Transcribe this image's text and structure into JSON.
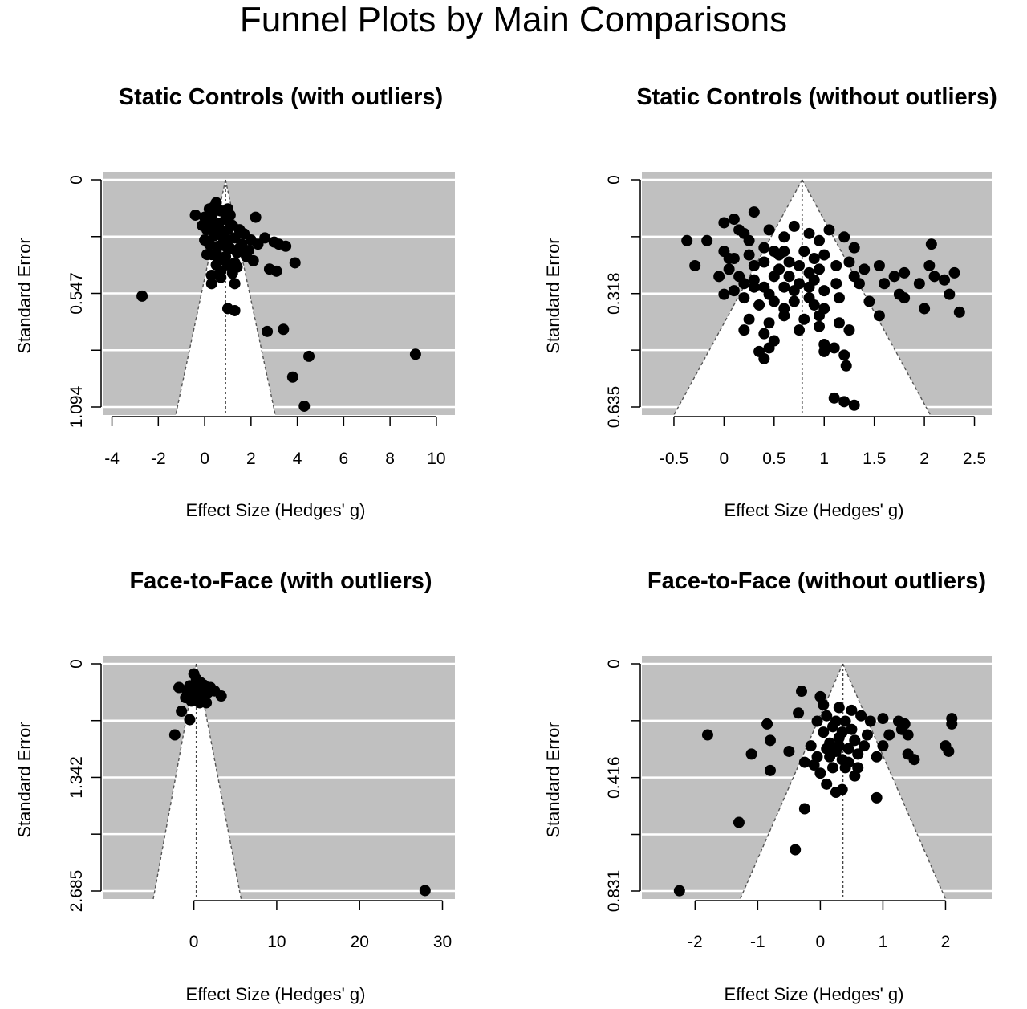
{
  "title": "Funnel Plots by Main Comparisons",
  "chart_data": [
    {
      "type": "scatter",
      "title": "Static Controls (with outliers)",
      "xlabel": "Effect Size (Hedges' g)",
      "ylabel": "Standard Error",
      "xlim": [
        -4.4,
        10.8
      ],
      "ylim": [
        1.094,
        0
      ],
      "x_ticks": [
        -4,
        -2,
        0,
        2,
        4,
        6,
        8,
        10
      ],
      "x_tick_labels": [
        "-4",
        "-2",
        "0",
        "2",
        "4",
        "6",
        "8",
        "10"
      ],
      "y_ticks": [
        0,
        0.547,
        1.094
      ],
      "y_tick_labels": [
        "0",
        "0.547",
        "1.094"
      ],
      "y_grid": [
        0,
        0.2735,
        0.547,
        0.8205,
        1.094
      ],
      "center": 0.9,
      "funnel_base_x": [
        -1.25,
        3.05
      ],
      "points": [
        [
          0.2,
          0.14
        ],
        [
          0.5,
          0.11
        ],
        [
          0.3,
          0.17
        ],
        [
          0.7,
          0.15
        ],
        [
          1.0,
          0.14
        ],
        [
          0.6,
          0.21
        ],
        [
          0.1,
          0.24
        ],
        [
          -0.1,
          0.22
        ],
        [
          0.9,
          0.19
        ],
        [
          1.2,
          0.22
        ],
        [
          1.5,
          0.24
        ],
        [
          0.4,
          0.27
        ],
        [
          0.8,
          0.28
        ],
        [
          1.3,
          0.28
        ],
        [
          0.2,
          0.31
        ],
        [
          0.6,
          0.32
        ],
        [
          1.1,
          0.33
        ],
        [
          1.6,
          0.31
        ],
        [
          2.0,
          0.29
        ],
        [
          0.3,
          0.36
        ],
        [
          0.9,
          0.37
        ],
        [
          1.4,
          0.35
        ],
        [
          0.5,
          0.41
        ],
        [
          1.0,
          0.41
        ],
        [
          0.3,
          0.46
        ],
        [
          0.7,
          0.47
        ],
        [
          1.2,
          0.45
        ],
        [
          1.8,
          0.37
        ],
        [
          2.1,
          0.39
        ],
        [
          -0.4,
          0.17
        ],
        [
          0.0,
          0.29
        ],
        [
          1.7,
          0.26
        ],
        [
          0.8,
          0.25
        ],
        [
          0.2,
          0.19
        ],
        [
          1.1,
          0.17
        ],
        [
          0.6,
          0.26
        ],
        [
          0.4,
          0.23
        ],
        [
          1.0,
          0.29
        ],
        [
          1.5,
          0.33
        ],
        [
          0.1,
          0.36
        ],
        [
          0.6,
          0.39
        ],
        [
          1.3,
          0.4
        ],
        [
          1.9,
          0.34
        ],
        [
          2.3,
          0.31
        ],
        [
          2.6,
          0.28
        ],
        [
          3.0,
          0.3
        ],
        [
          3.2,
          0.31
        ],
        [
          3.5,
          0.32
        ],
        [
          3.9,
          0.4
        ],
        [
          2.8,
          0.43
        ],
        [
          3.1,
          0.44
        ],
        [
          2.2,
          0.18
        ],
        [
          0.3,
          0.5
        ],
        [
          1.3,
          0.5
        ],
        [
          -2.7,
          0.56
        ],
        [
          1.0,
          0.62
        ],
        [
          1.3,
          0.63
        ],
        [
          2.7,
          0.73
        ],
        [
          3.4,
          0.72
        ],
        [
          4.5,
          0.85
        ],
        [
          3.8,
          0.95
        ],
        [
          4.3,
          1.09
        ],
        [
          9.1,
          0.84
        ],
        [
          0.7,
          0.44
        ],
        [
          0.5,
          0.35
        ],
        [
          1.0,
          0.24
        ],
        [
          0.0,
          0.18
        ],
        [
          0.4,
          0.13
        ],
        [
          0.9,
          0.32
        ],
        [
          1.4,
          0.42
        ]
      ]
    },
    {
      "type": "scatter",
      "title": "Static Controls (without outliers)",
      "xlabel": "Effect Size (Hedges' g)",
      "ylabel": "Standard Error",
      "xlim": [
        -0.82,
        2.68
      ],
      "ylim": [
        0.635,
        0
      ],
      "x_ticks": [
        -0.5,
        0,
        0.5,
        1,
        1.5,
        2,
        2.5
      ],
      "x_tick_labels": [
        "-0.5",
        "0",
        "0.5",
        "1",
        "1.5",
        "2",
        "2.5"
      ],
      "y_ticks": [
        0,
        0.318,
        0.635
      ],
      "y_tick_labels": [
        "0",
        "0.318",
        "0.635"
      ],
      "y_grid": [
        0,
        0.159,
        0.318,
        0.476,
        0.635
      ],
      "center": 0.78,
      "funnel_base_x": [
        -0.5,
        2.06
      ],
      "points": [
        [
          -0.37,
          0.17
        ],
        [
          -0.17,
          0.17
        ],
        [
          -0.29,
          0.24
        ],
        [
          0.0,
          0.12
        ],
        [
          0.1,
          0.11
        ],
        [
          0.3,
          0.09
        ],
        [
          0.2,
          0.15
        ],
        [
          0.45,
          0.14
        ],
        [
          0.6,
          0.16
        ],
        [
          0.7,
          0.13
        ],
        [
          0.85,
          0.15
        ],
        [
          0.95,
          0.17
        ],
        [
          1.05,
          0.14
        ],
        [
          1.2,
          0.16
        ],
        [
          1.3,
          0.19
        ],
        [
          0.0,
          0.2
        ],
        [
          0.1,
          0.22
        ],
        [
          0.25,
          0.21
        ],
        [
          0.4,
          0.19
        ],
        [
          0.55,
          0.21
        ],
        [
          0.65,
          0.23
        ],
        [
          0.8,
          0.2
        ],
        [
          0.9,
          0.22
        ],
        [
          1.0,
          0.21
        ],
        [
          1.12,
          0.24
        ],
        [
          1.25,
          0.23
        ],
        [
          1.4,
          0.25
        ],
        [
          1.55,
          0.24
        ],
        [
          1.7,
          0.27
        ],
        [
          1.8,
          0.26
        ],
        [
          2.07,
          0.18
        ],
        [
          1.95,
          0.29
        ],
        [
          2.1,
          0.27
        ],
        [
          2.2,
          0.28
        ],
        [
          2.25,
          0.32
        ],
        [
          2.3,
          0.26
        ],
        [
          2.35,
          0.37
        ],
        [
          2.05,
          0.24
        ],
        [
          1.75,
          0.32
        ],
        [
          1.6,
          0.29
        ],
        [
          0.05,
          0.25
        ],
        [
          0.15,
          0.27
        ],
        [
          0.3,
          0.28
        ],
        [
          0.5,
          0.27
        ],
        [
          0.6,
          0.3
        ],
        [
          0.75,
          0.29
        ],
        [
          0.85,
          0.3
        ],
        [
          1.0,
          0.31
        ],
        [
          1.12,
          0.29
        ],
        [
          1.3,
          0.27
        ],
        [
          0.1,
          0.31
        ],
        [
          0.2,
          0.33
        ],
        [
          0.35,
          0.35
        ],
        [
          0.45,
          0.32
        ],
        [
          0.6,
          0.36
        ],
        [
          0.7,
          0.34
        ],
        [
          0.9,
          0.35
        ],
        [
          1.0,
          0.36
        ],
        [
          1.15,
          0.33
        ],
        [
          1.35,
          0.29
        ],
        [
          0.25,
          0.39
        ],
        [
          0.45,
          0.4
        ],
        [
          0.6,
          0.38
        ],
        [
          0.8,
          0.39
        ],
        [
          0.95,
          0.38
        ],
        [
          1.15,
          0.4
        ],
        [
          0.2,
          0.42
        ],
        [
          0.4,
          0.43
        ],
        [
          0.5,
          0.45
        ],
        [
          0.75,
          0.42
        ],
        [
          0.95,
          0.41
        ],
        [
          1.25,
          0.42
        ],
        [
          0.35,
          0.48
        ],
        [
          0.45,
          0.47
        ],
        [
          0.4,
          0.5
        ],
        [
          1.0,
          0.46
        ],
        [
          1.0,
          0.48
        ],
        [
          1.1,
          0.47
        ],
        [
          1.2,
          0.49
        ],
        [
          1.22,
          0.52
        ],
        [
          1.55,
          0.38
        ],
        [
          1.8,
          0.33
        ],
        [
          2.0,
          0.36
        ],
        [
          1.45,
          0.34
        ],
        [
          1.1,
          0.61
        ],
        [
          1.2,
          0.62
        ],
        [
          1.3,
          0.63
        ],
        [
          0.15,
          0.14
        ],
        [
          0.5,
          0.2
        ],
        [
          0.3,
          0.24
        ],
        [
          0.75,
          0.24
        ],
        [
          0.55,
          0.25
        ],
        [
          0.85,
          0.26
        ],
        [
          0.95,
          0.25
        ],
        [
          0.2,
          0.29
        ],
        [
          0.4,
          0.3
        ],
        [
          0.7,
          0.31
        ],
        [
          0.5,
          0.34
        ],
        [
          0.3,
          0.3
        ],
        [
          0.6,
          0.2
        ],
        [
          0.05,
          0.22
        ],
        [
          -0.05,
          0.27
        ],
        [
          0.25,
          0.17
        ],
        [
          0.9,
          0.28
        ],
        [
          0.4,
          0.23
        ],
        [
          0.0,
          0.32
        ],
        [
          0.65,
          0.27
        ],
        [
          0.85,
          0.33
        ]
      ]
    },
    {
      "type": "scatter",
      "title": "Face-to-Face (with outliers)",
      "xlabel": "Effect Size (Hedges' g)",
      "ylabel": "Standard Error",
      "xlim": [
        -11,
        31.5
      ],
      "ylim": [
        2.685,
        0
      ],
      "x_ticks": [
        0,
        10,
        20,
        30
      ],
      "x_tick_labels": [
        "0",
        "10",
        "20",
        "30"
      ],
      "y_ticks": [
        0,
        1.342,
        2.685
      ],
      "y_tick_labels": [
        "0",
        "1.342",
        "2.685"
      ],
      "y_grid": [
        0,
        0.671,
        1.342,
        2.013,
        2.685
      ],
      "center": 0.3,
      "funnel_base_x": [
        -4.9,
        5.7
      ],
      "points": [
        [
          0.0,
          0.12
        ],
        [
          0.3,
          0.18
        ],
        [
          0.8,
          0.22
        ],
        [
          -0.5,
          0.26
        ],
        [
          0.5,
          0.3
        ],
        [
          1.2,
          0.25
        ],
        [
          2.0,
          0.28
        ],
        [
          -1.8,
          0.28
        ],
        [
          -0.8,
          0.33
        ],
        [
          0.2,
          0.36
        ],
        [
          1.0,
          0.38
        ],
        [
          1.7,
          0.34
        ],
        [
          3.3,
          0.38
        ],
        [
          2.5,
          0.32
        ],
        [
          -0.3,
          0.44
        ],
        [
          0.7,
          0.46
        ],
        [
          1.5,
          0.46
        ],
        [
          -1.5,
          0.56
        ],
        [
          -0.5,
          0.66
        ],
        [
          -2.3,
          0.84
        ],
        [
          0.3,
          0.22
        ],
        [
          -1.0,
          0.4
        ],
        [
          0.9,
          0.3
        ],
        [
          27.9,
          2.68
        ]
      ]
    },
    {
      "type": "scatter",
      "title": "Face-to-Face (without outliers)",
      "xlabel": "Effect Size (Hedges' g)",
      "ylabel": "Standard Error",
      "xlim": [
        -2.85,
        2.75
      ],
      "ylim": [
        0.831,
        0
      ],
      "x_ticks": [
        -2,
        -1,
        0,
        1,
        2
      ],
      "x_tick_labels": [
        "-2",
        "-1",
        "0",
        "1",
        "2"
      ],
      "y_ticks": [
        0,
        0.416,
        0.831
      ],
      "y_tick_labels": [
        "0",
        "0.416",
        "0.831"
      ],
      "y_grid": [
        0,
        0.208,
        0.416,
        0.624,
        0.831
      ],
      "center": 0.36,
      "funnel_base_x": [
        -1.28,
        2.0
      ],
      "points": [
        [
          -2.25,
          0.83
        ],
        [
          -1.8,
          0.26
        ],
        [
          -1.3,
          0.58
        ],
        [
          -1.1,
          0.33
        ],
        [
          -0.85,
          0.22
        ],
        [
          -0.8,
          0.28
        ],
        [
          -0.8,
          0.39
        ],
        [
          -0.5,
          0.32
        ],
        [
          -0.4,
          0.68
        ],
        [
          -0.35,
          0.18
        ],
        [
          -0.3,
          0.1
        ],
        [
          -0.25,
          0.36
        ],
        [
          -0.25,
          0.53
        ],
        [
          -0.1,
          0.37
        ],
        [
          -0.05,
          0.21
        ],
        [
          0.0,
          0.12
        ],
        [
          0.05,
          0.25
        ],
        [
          0.1,
          0.19
        ],
        [
          0.15,
          0.29
        ],
        [
          0.2,
          0.23
        ],
        [
          0.25,
          0.32
        ],
        [
          0.3,
          0.27
        ],
        [
          0.3,
          0.16
        ],
        [
          0.35,
          0.35
        ],
        [
          0.4,
          0.21
        ],
        [
          0.45,
          0.31
        ],
        [
          0.5,
          0.24
        ],
        [
          0.55,
          0.28
        ],
        [
          0.6,
          0.33
        ],
        [
          0.65,
          0.19
        ],
        [
          0.7,
          0.3
        ],
        [
          0.75,
          0.26
        ],
        [
          0.8,
          0.21
        ],
        [
          0.9,
          0.34
        ],
        [
          0.9,
          0.49
        ],
        [
          1.0,
          0.2
        ],
        [
          1.0,
          0.3
        ],
        [
          1.1,
          0.26
        ],
        [
          1.25,
          0.21
        ],
        [
          1.35,
          0.22
        ],
        [
          1.4,
          0.33
        ],
        [
          1.5,
          0.35
        ],
        [
          1.3,
          0.24
        ],
        [
          1.4,
          0.26
        ],
        [
          2.0,
          0.3
        ],
        [
          2.05,
          0.32
        ],
        [
          2.1,
          0.22
        ],
        [
          2.1,
          0.2
        ],
        [
          0.0,
          0.4
        ],
        [
          0.1,
          0.44
        ],
        [
          0.25,
          0.47
        ],
        [
          0.35,
          0.46
        ],
        [
          0.55,
          0.41
        ],
        [
          0.2,
          0.38
        ],
        [
          0.4,
          0.38
        ],
        [
          -0.05,
          0.34
        ],
        [
          0.15,
          0.34
        ],
        [
          0.6,
          0.38
        ],
        [
          -0.15,
          0.3
        ],
        [
          0.5,
          0.17
        ],
        [
          0.45,
          0.36
        ],
        [
          0.25,
          0.21
        ],
        [
          0.05,
          0.15
        ],
        [
          0.35,
          0.25
        ],
        [
          0.1,
          0.31
        ],
        [
          0.3,
          0.3
        ]
      ]
    }
  ]
}
